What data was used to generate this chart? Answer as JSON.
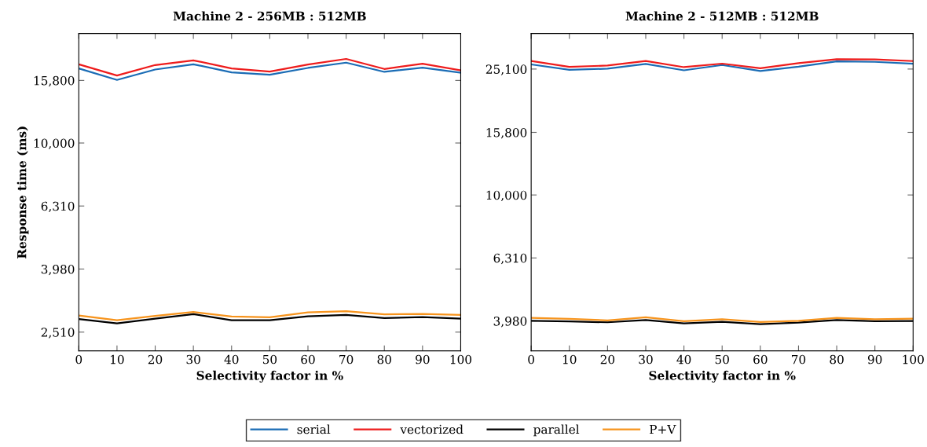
{
  "chart_data": [
    {
      "type": "line",
      "title": "Machine 2 - 256MB : 512MB",
      "xlabel": "Selectivity factor in %",
      "ylabel": "Response time (ms)",
      "log": "y",
      "grid": false,
      "legend": "bottom",
      "marker": "none",
      "line_style": "solid",
      "x": [
        0,
        10,
        20,
        30,
        40,
        50,
        60,
        70,
        80,
        90,
        100
      ],
      "xlim": [
        0,
        100
      ],
      "xticks": [
        0,
        10,
        20,
        30,
        40,
        50,
        60,
        70,
        80,
        90,
        100
      ],
      "ylim": [
        2188,
        22260
      ],
      "yticks": [
        {
          "value": 2510,
          "label": "2,510"
        },
        {
          "value": 3980,
          "label": "3,980"
        },
        {
          "value": 6310,
          "label": "6,310"
        },
        {
          "value": 10000,
          "label": "10,000"
        },
        {
          "value": 15800,
          "label": "15,800"
        }
      ],
      "series": [
        {
          "name": "serial",
          "color": "#1a6cb5",
          "values": [
            17250,
            15860,
            17110,
            17780,
            16760,
            16470,
            17310,
            17990,
            16820,
            17350,
            16720
          ]
        },
        {
          "name": "vectorized",
          "color": "#ee1c1c",
          "values": [
            17780,
            16380,
            17680,
            18300,
            17250,
            16860,
            17750,
            18490,
            17180,
            17850,
            17010
          ]
        },
        {
          "name": "parallel",
          "color": "#000000",
          "values": [
            2761,
            2676,
            2770,
            2863,
            2738,
            2738,
            2818,
            2847,
            2782,
            2803,
            2770
          ]
        },
        {
          "name": "P+V",
          "color": "#f7941d",
          "values": [
            2835,
            2738,
            2825,
            2908,
            2814,
            2798,
            2901,
            2924,
            2858,
            2868,
            2847
          ]
        }
      ]
    },
    {
      "type": "line",
      "title": "Machine 2 - 512MB : 512MB",
      "xlabel": "Selectivity factor in %",
      "log": "y",
      "grid": false,
      "marker": "none",
      "line_style": "solid",
      "x": [
        0,
        10,
        20,
        30,
        40,
        50,
        60,
        70,
        80,
        90,
        100
      ],
      "xlim": [
        0,
        100
      ],
      "xticks": [
        0,
        10,
        20,
        30,
        40,
        50,
        60,
        70,
        80,
        90,
        100
      ],
      "ylim": [
        3199,
        32540
      ],
      "yticks": [
        {
          "value": 3980,
          "label": "3,980"
        },
        {
          "value": 6310,
          "label": "6,310"
        },
        {
          "value": 10000,
          "label": "10,000"
        },
        {
          "value": 15800,
          "label": "15,800"
        },
        {
          "value": 25100,
          "label": "25,100"
        }
      ],
      "series": [
        {
          "color": "#1a6cb5",
          "values": [
            25960,
            24970,
            25160,
            26050,
            24870,
            25850,
            24740,
            25550,
            26560,
            26450,
            26110
          ]
        },
        {
          "color": "#ee1c1c",
          "values": [
            26610,
            25510,
            25750,
            26610,
            25450,
            26110,
            25260,
            26200,
            26970,
            26920,
            26610
          ]
        },
        {
          "color": "#000000",
          "values": [
            3988,
            3966,
            3943,
            4011,
            3913,
            3958,
            3890,
            3936,
            4011,
            3974,
            3981
          ]
        },
        {
          "color": "#f7941d",
          "values": [
            4074,
            4044,
            3997,
            4090,
            3974,
            4034,
            3951,
            3988,
            4074,
            4034,
            4050
          ]
        }
      ]
    }
  ]
}
